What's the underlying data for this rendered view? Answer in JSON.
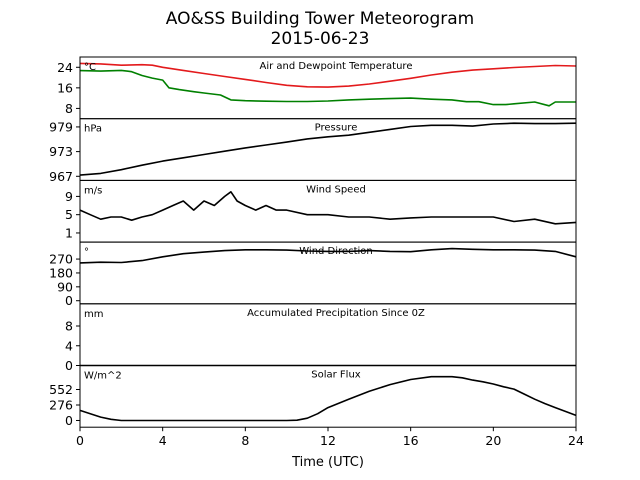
{
  "chart_data": {
    "type": "line",
    "title": "AO&SS Building Tower Meteorogram",
    "subtitle": "2015-06-23",
    "xlabel": "Time (UTC)",
    "xlim": [
      0,
      24
    ],
    "xticks": [
      0,
      4,
      8,
      12,
      16,
      20,
      24
    ],
    "panels": [
      {
        "id": "temperature",
        "title": "Air and Dewpoint Temperature",
        "unit": "°C",
        "ylim": [
          4,
          28
        ],
        "yticks": [
          8,
          16,
          24
        ],
        "series": [
          {
            "color": "#e31a1c",
            "x": [
              0,
              1,
              2,
              3,
              3.5,
              4,
              5,
              6,
              7,
              8,
              9,
              10,
              11,
              12,
              13,
              14,
              15,
              16,
              17,
              18,
              19,
              20,
              21,
              22,
              23,
              24
            ],
            "y": [
              25.5,
              25.3,
              24.8,
              25,
              24.8,
              24,
              22.8,
              21.6,
              20.4,
              19.3,
              18.1,
              17.0,
              16.4,
              16.3,
              16.7,
              17.5,
              18.6,
              19.7,
              21.0,
              22.1,
              22.9,
              23.4,
              23.9,
              24.3,
              24.7,
              24.5
            ]
          },
          {
            "color": "#008000",
            "x": [
              0,
              1,
              2,
              2.5,
              3,
              3.5,
              4,
              4.3,
              4.8,
              5.5,
              6,
              6.8,
              7.3,
              8,
              9,
              10,
              11,
              12,
              13,
              14,
              15,
              16,
              17,
              18,
              18.7,
              19.3,
              20,
              20.6,
              21,
              22,
              22.7,
              23,
              24
            ],
            "y": [
              22.7,
              22.5,
              22.8,
              22.3,
              20.8,
              19.8,
              19.0,
              16.0,
              15.3,
              14.5,
              14.0,
              13.2,
              11.3,
              11.0,
              10.8,
              10.7,
              10.7,
              10.9,
              11.3,
              11.6,
              11.8,
              12.0,
              11.6,
              11.3,
              10.6,
              10.6,
              9.5,
              9.5,
              9.8,
              10.5,
              9.0,
              10.5,
              10.5
            ]
          }
        ]
      },
      {
        "id": "pressure",
        "title": "Pressure",
        "unit": "hPa",
        "ylim": [
          966,
          981
        ],
        "yticks": [
          967,
          973,
          979
        ],
        "series": [
          {
            "color": "#000000",
            "x": [
              0,
              1,
              2,
              3,
              4,
              5,
              6,
              7,
              8,
              9,
              10,
              11,
              12,
              13,
              14,
              15,
              16,
              17,
              18,
              19,
              20,
              21,
              22,
              23,
              24
            ],
            "y": [
              967.3,
              967.7,
              968.6,
              969.7,
              970.7,
              971.5,
              972.3,
              973.1,
              973.9,
              974.6,
              975.3,
              976.1,
              976.6,
              977.0,
              977.7,
              978.4,
              979.1,
              979.4,
              979.4,
              979.2,
              979.7,
              979.9,
              979.8,
              979.8,
              979.9
            ]
          }
        ]
      },
      {
        "id": "wind_speed",
        "title": "Wind Speed",
        "unit": "m/s",
        "ylim": [
          -1,
          12.5
        ],
        "yticks": [
          1,
          5,
          9
        ],
        "series": [
          {
            "color": "#000000",
            "x": [
              0,
              0.5,
              1,
              1.5,
              2,
              2.5,
              3,
              3.5,
              4,
              4.5,
              5,
              5.5,
              6,
              6.5,
              7,
              7.3,
              7.6,
              8,
              8.5,
              9,
              9.5,
              10,
              11,
              12,
              13,
              14,
              15,
              16,
              17,
              18,
              19,
              20,
              21,
              22,
              23,
              24
            ],
            "y": [
              6,
              5,
              4,
              4.5,
              4.5,
              3.8,
              4.5,
              5,
              6,
              7,
              8,
              6,
              8,
              7,
              9,
              10,
              8,
              7,
              6,
              7,
              6,
              6,
              5,
              5,
              4.5,
              4.5,
              4,
              4.3,
              4.5,
              4.5,
              4.5,
              4.5,
              3.5,
              4,
              3,
              3.3
            ]
          }
        ]
      },
      {
        "id": "wind_direction",
        "title": "Wind Direction",
        "unit": "°",
        "ylim": [
          -20,
          380
        ],
        "yticks": [
          0,
          90,
          180,
          270
        ],
        "series": [
          {
            "color": "#000000",
            "x": [
              0,
              1,
              2,
              3,
              4,
              5,
              6,
              7,
              8,
              9,
              10,
              11,
              12,
              13,
              14,
              15,
              16,
              17,
              18,
              19,
              20,
              21,
              22,
              23,
              24
            ],
            "y": [
              245,
              250,
              248,
              260,
              285,
              305,
              315,
              325,
              330,
              330,
              328,
              322,
              320,
              320,
              325,
              320,
              318,
              330,
              338,
              333,
              330,
              330,
              328,
              320,
              285
            ]
          }
        ]
      },
      {
        "id": "precipitation",
        "title": "Accumulated Precipitation Since 0Z",
        "unit": "mm",
        "ylim": [
          0,
          12.5
        ],
        "yticks": [
          0,
          4,
          8
        ],
        "series": [
          {
            "color": "#000000",
            "x": [
              0,
              24
            ],
            "y": [
              0,
              0
            ]
          }
        ]
      },
      {
        "id": "solar_flux",
        "title": "Solar Flux",
        "unit": "W/m^2",
        "ylim": [
          -120,
          980
        ],
        "yticks": [
          0,
          276,
          552
        ],
        "series": [
          {
            "color": "#000000",
            "x": [
              0,
              0.5,
              1,
              1.5,
              2,
              3,
              4,
              5,
              6,
              7,
              8,
              9,
              10,
              10.5,
              11,
              11.5,
              12,
              13,
              14,
              15,
              16,
              17,
              18,
              18.5,
              19,
              19.5,
              20,
              20.5,
              21,
              21.5,
              22,
              22.5,
              23,
              23.5,
              24
            ],
            "y": [
              180,
              120,
              60,
              20,
              0,
              0,
              0,
              0,
              0,
              0,
              0,
              0,
              0,
              5,
              40,
              120,
              230,
              380,
              520,
              640,
              730,
              780,
              780,
              760,
              720,
              690,
              650,
              600,
              560,
              470,
              380,
              300,
              230,
              160,
              90
            ]
          }
        ]
      }
    ]
  }
}
